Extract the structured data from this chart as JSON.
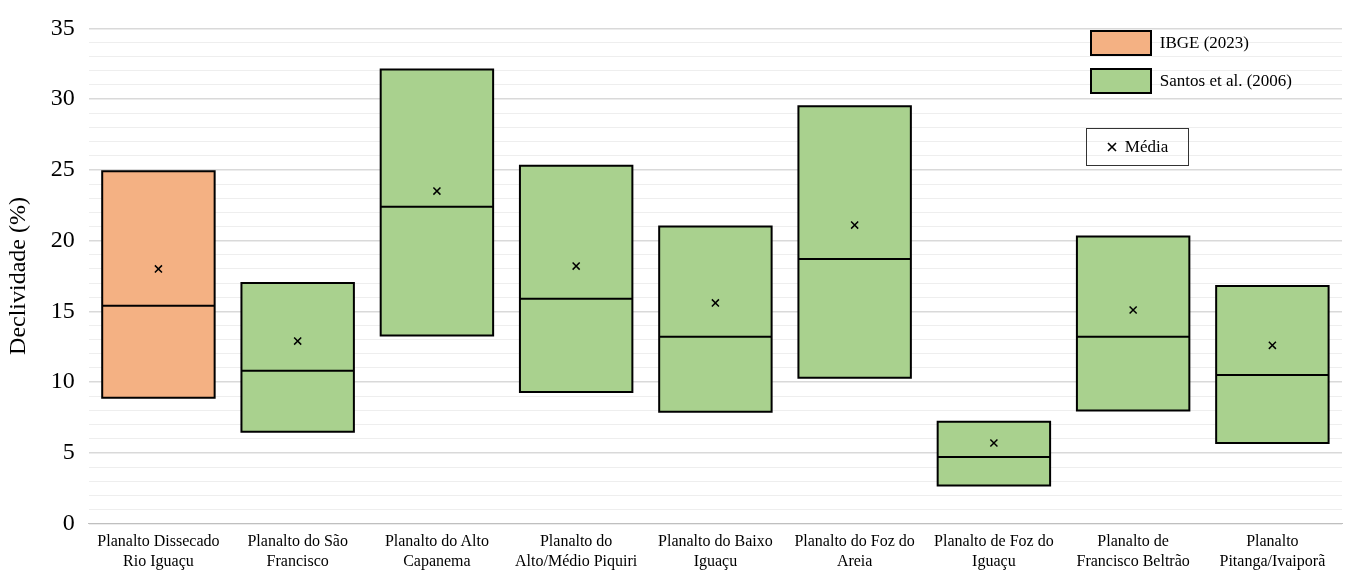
{
  "chart_data": {
    "type": "box",
    "ylabel": "Declividade (%)",
    "categories": [
      "Planalto Dissecado Rio Iguaçu",
      "Planalto do São Francisco",
      "Planalto do Alto Capanema",
      "Planalto do Alto/Médio Piquiri",
      "Planalto do Baixo Iguaçu",
      "Planalto do Foz do Areia",
      "Planalto de Foz do Iguaçu",
      "Planalto de Francisco Beltrão",
      "Planalto Pitanga/Ivaiporã"
    ],
    "series": [
      {
        "name": "IBGE (2023)",
        "color": "#f4b183",
        "boxes": [
          {
            "low": 8.9,
            "q1": 8.9,
            "median": 15.4,
            "q3": 24.9,
            "high": 24.9
          },
          null,
          null,
          null,
          null,
          null,
          null,
          null,
          null
        ]
      },
      {
        "name": "Santos et al. (2006)",
        "color": "#a9d18e",
        "boxes": [
          null,
          {
            "low": 6.5,
            "q1": 6.5,
            "median": 10.8,
            "q3": 17.0,
            "high": 17.0
          },
          {
            "low": 13.3,
            "q1": 13.3,
            "median": 22.4,
            "q3": 32.1,
            "high": 32.1
          },
          {
            "low": 9.3,
            "q1": 9.3,
            "median": 15.9,
            "q3": 25.3,
            "high": 25.3
          },
          {
            "low": 7.9,
            "q1": 7.9,
            "median": 13.2,
            "q3": 21.0,
            "high": 21.0
          },
          {
            "low": 10.3,
            "q1": 10.3,
            "median": 18.7,
            "q3": 29.5,
            "high": 29.5
          },
          {
            "low": 2.7,
            "q1": 2.7,
            "median": 4.7,
            "q3": 7.2,
            "high": 7.2
          },
          {
            "low": 8.0,
            "q1": 8.0,
            "median": 13.2,
            "q3": 20.3,
            "high": 20.3
          },
          {
            "low": 5.7,
            "q1": 5.7,
            "median": 10.5,
            "q3": 16.8,
            "high": 16.8
          }
        ]
      },
      {
        "name": "Média",
        "type": "scatter",
        "color": "#000000",
        "marker": "cross",
        "x": [
          "Planalto Dissecado Rio Iguaçu",
          "Planalto do São Francisco",
          "Planalto do Alto Capanema",
          "Planalto do Alto/Médio Piquiri",
          "Planalto do Baixo Iguaçu",
          "Planalto do Foz do Areia",
          "Planalto de Foz do Iguaçu",
          "Planalto de Francisco Beltrão",
          "Planalto Pitanga/Ivaiporã"
        ],
        "values": [
          18.0,
          12.9,
          23.5,
          18.2,
          15.6,
          21.1,
          5.7,
          15.1,
          12.6
        ]
      }
    ],
    "ylim": [
      0,
      35
    ],
    "yticks": [
      0,
      {
        "value": 1,
        "label": null
      },
      {
        "value": 2,
        "label": null
      },
      {
        "value": 3,
        "label": null
      },
      {
        "value": 4,
        "label": null
      },
      5,
      {
        "value": 6,
        "label": null
      },
      {
        "value": 7,
        "label": null
      },
      {
        "value": 8,
        "label": null
      },
      {
        "value": 9,
        "label": null
      },
      10,
      {
        "value": 11,
        "label": null
      },
      {
        "value": 12,
        "label": null
      },
      {
        "value": 13,
        "label": null
      },
      {
        "value": 14,
        "label": null
      },
      15,
      {
        "value": 16,
        "label": null
      },
      {
        "value": 17,
        "label": null
      },
      {
        "value": 18,
        "label": null
      },
      {
        "value": 19,
        "label": null
      },
      20,
      {
        "value": 21,
        "label": null
      },
      {
        "value": 22,
        "label": null
      },
      {
        "value": 23,
        "label": null
      },
      {
        "value": 24,
        "label": null
      },
      25,
      {
        "value": 26,
        "label": null
      },
      {
        "value": 27,
        "label": null
      },
      {
        "value": 28,
        "label": null
      },
      {
        "value": 29,
        "label": null
      },
      30,
      {
        "value": 31,
        "label": null
      },
      {
        "value": 32,
        "label": null
      },
      {
        "value": 33,
        "label": null
      },
      {
        "value": 34,
        "label": null
      },
      35
    ],
    "grid": "y",
    "legend": "top right"
  }
}
